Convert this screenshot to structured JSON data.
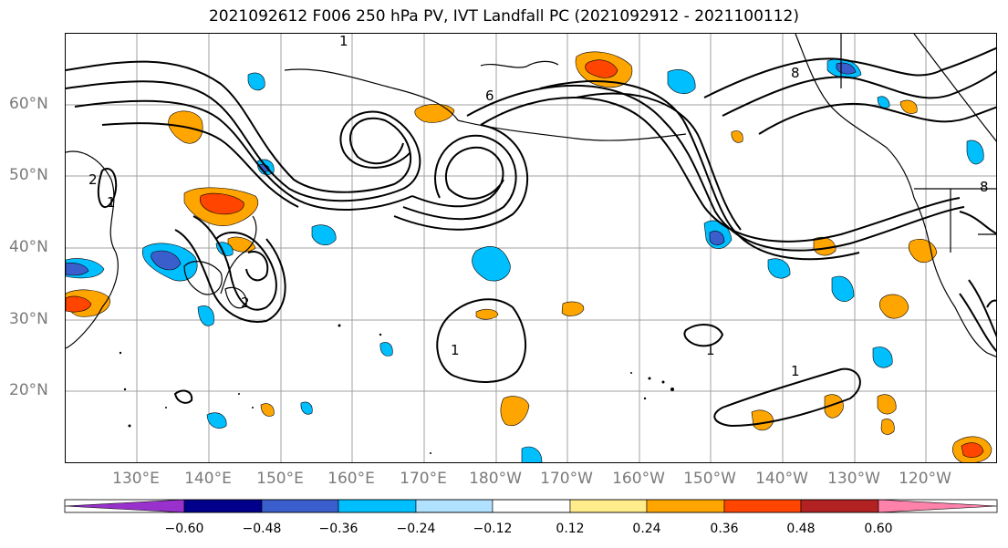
{
  "title": "2021092612 F006 250 hPa PV, IVT Landfall PC (2021092912 - 2021100112)",
  "lat_labels": [
    "60°N",
    "50°N",
    "40°N",
    "30°N",
    "20°N"
  ],
  "lon_labels": [
    "130°E",
    "140°E",
    "150°E",
    "160°E",
    "170°E",
    "180°W",
    "170°W",
    "160°W",
    "150°W",
    "140°W",
    "130°W",
    "120°W"
  ],
  "colorbar": {
    "ticks": [
      "−0.60",
      "−0.48",
      "−0.36",
      "−0.24",
      "−0.12",
      "0.12",
      "0.24",
      "0.36",
      "0.48",
      "0.60"
    ],
    "colors": [
      "#9932cc",
      "#00008b",
      "#3a5fcd",
      "#00bfff",
      "#b0e2ff",
      "#ffffff",
      "#ffec8b",
      "#ffa500",
      "#ff4500",
      "#b22222",
      "#ff82ab"
    ]
  },
  "contour_labels": [
    "1",
    "2",
    "6",
    "8",
    "1",
    "2",
    "1",
    "1",
    "1",
    "8"
  ]
}
